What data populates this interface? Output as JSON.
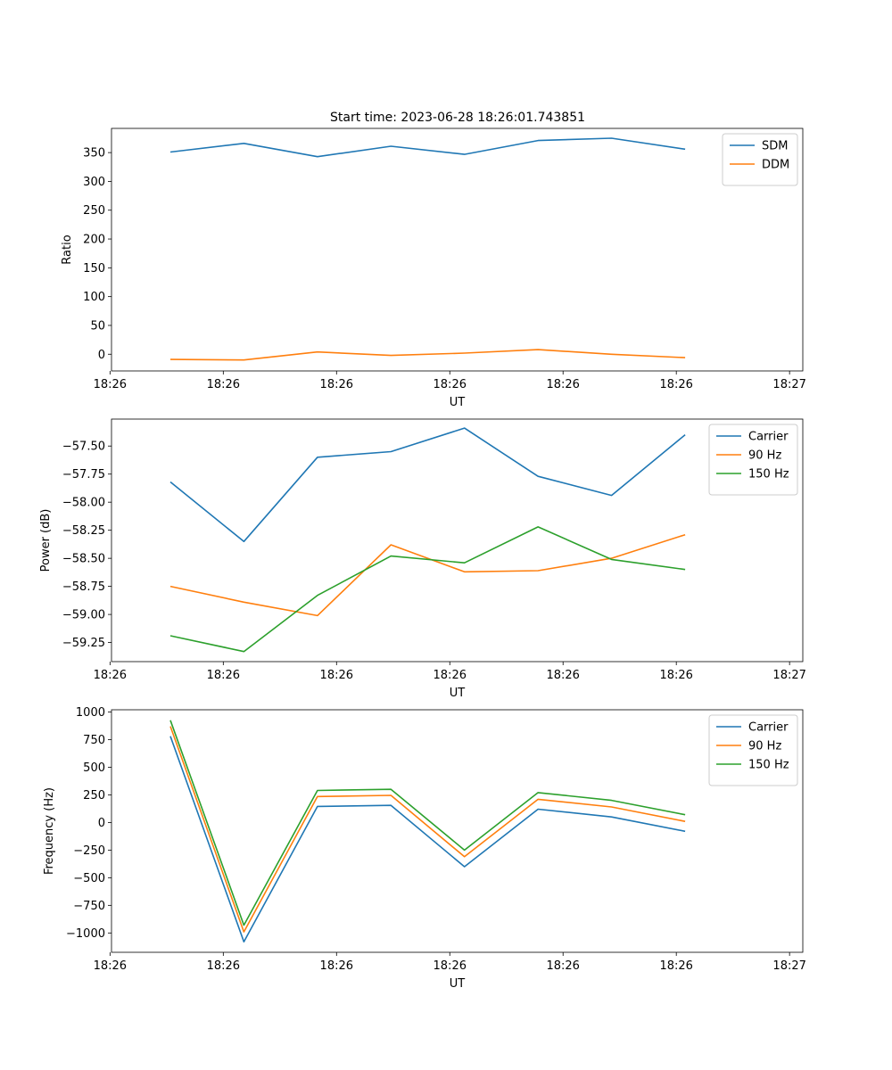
{
  "figure": {
    "title": "Start time: 2023-06-28 18:26:01.743851"
  },
  "chart_data": [
    {
      "type": "line",
      "title": "Start time: 2023-06-28 18:26:01.743851",
      "xlabel": "UT",
      "ylabel": "Ratio",
      "x_tick_labels": [
        "18:26",
        "18:26",
        "18:26",
        "18:26",
        "18:26",
        "18:26",
        "18:27"
      ],
      "y_ticks": [
        0,
        50,
        100,
        150,
        200,
        250,
        300,
        350
      ],
      "ylim": [
        -29,
        392
      ],
      "grid": false,
      "legend_position": "top-right",
      "x": [
        1,
        2,
        3,
        4,
        5,
        6,
        7,
        8
      ],
      "series": [
        {
          "name": "SDM",
          "color": "#1f77b4",
          "values": [
            351,
            366,
            343,
            361,
            347,
            371,
            375,
            356
          ]
        },
        {
          "name": "DDM",
          "color": "#ff7f0e",
          "values": [
            -9,
            -10,
            4,
            -2,
            2,
            8,
            0,
            -6
          ]
        }
      ]
    },
    {
      "type": "line",
      "title": "",
      "xlabel": "UT",
      "ylabel": "Power (dB)",
      "x_tick_labels": [
        "18:26",
        "18:26",
        "18:26",
        "18:26",
        "18:26",
        "18:26",
        "18:27"
      ],
      "y_ticks": [
        -59.25,
        -59.0,
        -58.75,
        -58.5,
        -58.25,
        -58.0,
        -57.75,
        -57.5
      ],
      "y_tick_labels": [
        "−59.25",
        "−59.00",
        "−58.75",
        "−58.50",
        "−58.25",
        "−58.00",
        "−57.75",
        "−57.50"
      ],
      "ylim": [
        -59.42,
        -57.26
      ],
      "grid": false,
      "legend_position": "top-right",
      "x": [
        1,
        2,
        3,
        4,
        5,
        6,
        7,
        8
      ],
      "series": [
        {
          "name": "Carrier",
          "color": "#1f77b4",
          "values": [
            -57.82,
            -58.35,
            -57.6,
            -57.55,
            -57.34,
            -57.77,
            -57.94,
            -57.4
          ]
        },
        {
          "name": "90 Hz",
          "color": "#ff7f0e",
          "values": [
            -58.75,
            -58.89,
            -59.01,
            -58.38,
            -58.62,
            -58.61,
            -58.5,
            -58.29
          ]
        },
        {
          "name": "150 Hz",
          "color": "#2ca02c",
          "values": [
            -59.19,
            -59.33,
            -58.83,
            -58.48,
            -58.54,
            -58.22,
            -58.51,
            -58.6
          ]
        }
      ]
    },
    {
      "type": "line",
      "title": "",
      "xlabel": "UT",
      "ylabel": "Frequency (Hz)",
      "x_tick_labels": [
        "18:26",
        "18:26",
        "18:26",
        "18:26",
        "18:26",
        "18:26",
        "18:27"
      ],
      "y_ticks": [
        -1000,
        -750,
        -500,
        -250,
        0,
        250,
        500,
        750,
        1000
      ],
      "y_tick_labels": [
        "−1000",
        "−750",
        "−500",
        "−250",
        "0",
        "250",
        "500",
        "750",
        "1000"
      ],
      "ylim": [
        -1175,
        1020
      ],
      "grid": false,
      "legend_position": "top-right",
      "x": [
        1,
        2,
        3,
        4,
        5,
        6,
        7,
        8
      ],
      "series": [
        {
          "name": "Carrier",
          "color": "#1f77b4",
          "values": [
            780,
            -1080,
            145,
            155,
            -400,
            120,
            50,
            -80
          ]
        },
        {
          "name": "90 Hz",
          "color": "#ff7f0e",
          "values": [
            870,
            -990,
            235,
            245,
            -310,
            210,
            140,
            10
          ]
        },
        {
          "name": "150 Hz",
          "color": "#2ca02c",
          "values": [
            925,
            -930,
            290,
            300,
            -250,
            270,
            200,
            70
          ]
        }
      ]
    }
  ]
}
